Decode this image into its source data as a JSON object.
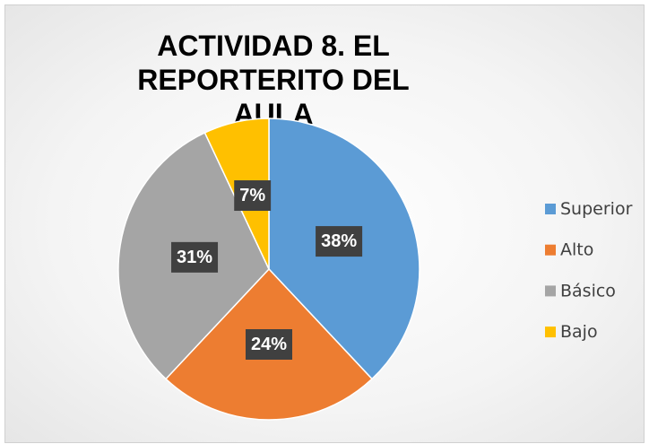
{
  "chart_data": {
    "type": "pie",
    "title": "ACTIVIDAD 8. EL REPORTERITO DEL AULA",
    "categories": [
      "Superior",
      "Alto",
      "Básico",
      "Bajo"
    ],
    "values": [
      38,
      24,
      31,
      7
    ],
    "value_labels": [
      "38%",
      "24%",
      "31%",
      "7%"
    ],
    "colors": [
      "#5b9bd5",
      "#ed7d31",
      "#a5a5a5",
      "#ffc000"
    ],
    "legend": "right"
  }
}
